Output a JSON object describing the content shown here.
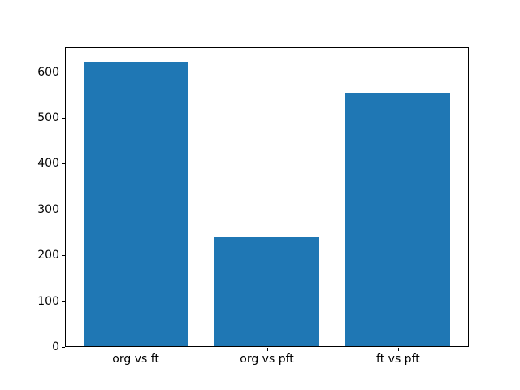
{
  "figure": {
    "background": "#ffffff"
  },
  "chart_data": {
    "type": "bar",
    "title": "",
    "xlabel": "",
    "ylabel": "",
    "categories": [
      "org vs ft",
      "org vs pft",
      "ft vs pft"
    ],
    "values": [
      623,
      240,
      554
    ],
    "bar_color": "#1f77b4",
    "yticks": [
      0,
      100,
      200,
      300,
      400,
      500,
      600
    ],
    "ylim": [
      0,
      654
    ],
    "xlim": [
      -0.54,
      2.54
    ],
    "bar_width": 0.8,
    "grid": false,
    "legend": null,
    "axis_color": "#000000",
    "tick_label_color": "#000000"
  }
}
